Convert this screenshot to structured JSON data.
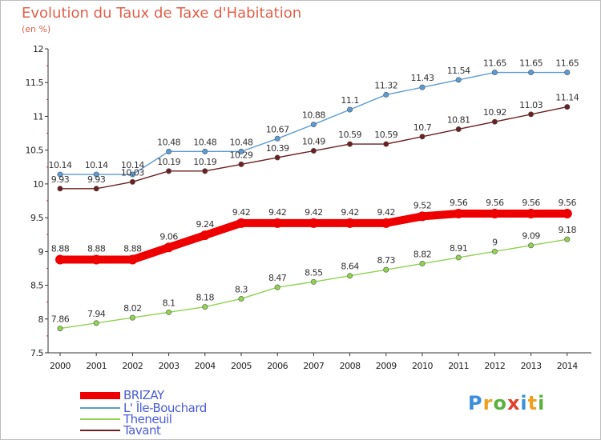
{
  "title": "Evolution du Taux de Taxe d'Habitation",
  "subtitle": "(en %)",
  "logo": {
    "text": "Proxiti",
    "colors": [
      "#3a8fd8",
      "#f0a020",
      "#5ab040",
      "#e0402a",
      "#3a8fd8",
      "#f0a020",
      "#5ab040"
    ]
  },
  "chart_data": {
    "type": "line",
    "title": "Evolution du Taux de Taxe d'Habitation",
    "ylabel": "(en %)",
    "xlabel": "",
    "x": [
      "2000",
      "2001",
      "2002",
      "2003",
      "2004",
      "2005",
      "2006",
      "2007",
      "2008",
      "2009",
      "2010",
      "2011",
      "2012",
      "2013",
      "2014"
    ],
    "ylim": [
      7.5,
      12
    ],
    "yticks": [
      "7.5",
      "8",
      "8.5",
      "9",
      "9.5",
      "10",
      "10.5",
      "11",
      "11.5",
      "12"
    ],
    "grid": false,
    "legend_position": "bottom-left",
    "series": [
      {
        "name": "L' Île-Bouchard",
        "color": "#5b9bd5",
        "labels": [
          "10.14",
          "10.14",
          "10.14",
          "10.48",
          "10.48",
          "10.48",
          "10.67",
          "10.88",
          "11.1",
          "11.32",
          "11.43",
          "11.54",
          "11.65",
          "11.65",
          "11.65"
        ],
        "values": [
          10.14,
          10.14,
          10.14,
          10.48,
          10.48,
          10.48,
          10.67,
          10.88,
          11.1,
          11.32,
          11.43,
          11.54,
          11.65,
          11.65,
          11.65
        ]
      },
      {
        "name": "Tavant",
        "color": "#6b1f1f",
        "labels": [
          "9.93",
          "9.93",
          "10.03",
          "10.19",
          "10.19",
          "10.29",
          "10.39",
          "10.49",
          "10.59",
          "10.59",
          "10.7",
          "10.81",
          "10.92",
          "11.03",
          "11.14"
        ],
        "values": [
          9.93,
          9.93,
          10.03,
          10.19,
          10.19,
          10.29,
          10.39,
          10.49,
          10.59,
          10.59,
          10.7,
          10.81,
          10.92,
          11.03,
          11.14
        ]
      },
      {
        "name": "Theneuil",
        "color": "#8fd34f",
        "labels": [
          "7.86",
          "7.94",
          "8.02",
          "8.1",
          "8.18",
          "8.3",
          "8.47",
          "8.55",
          "8.64",
          "8.73",
          "8.82",
          "8.91",
          "9",
          "9.09",
          "9.18"
        ],
        "values": [
          7.86,
          7.94,
          8.02,
          8.1,
          8.18,
          8.3,
          8.47,
          8.55,
          8.64,
          8.73,
          8.82,
          8.91,
          9,
          9.09,
          9.18
        ]
      },
      {
        "name": "BRIZAY",
        "color": "#ee0000",
        "labels": [
          "8.88",
          "8.88",
          "8.88",
          "9.06",
          "9.24",
          "9.42",
          "9.42",
          "9.42",
          "9.42",
          "9.42",
          "9.52",
          "9.56",
          "9.56",
          "9.56",
          "9.56"
        ],
        "values": [
          8.88,
          8.88,
          8.88,
          9.06,
          9.24,
          9.42,
          9.42,
          9.42,
          9.42,
          9.42,
          9.52,
          9.56,
          9.56,
          9.56,
          9.56
        ]
      }
    ],
    "legend": [
      "BRIZAY",
      "L' Île-Bouchard",
      "Theneuil",
      "Tavant"
    ]
  }
}
